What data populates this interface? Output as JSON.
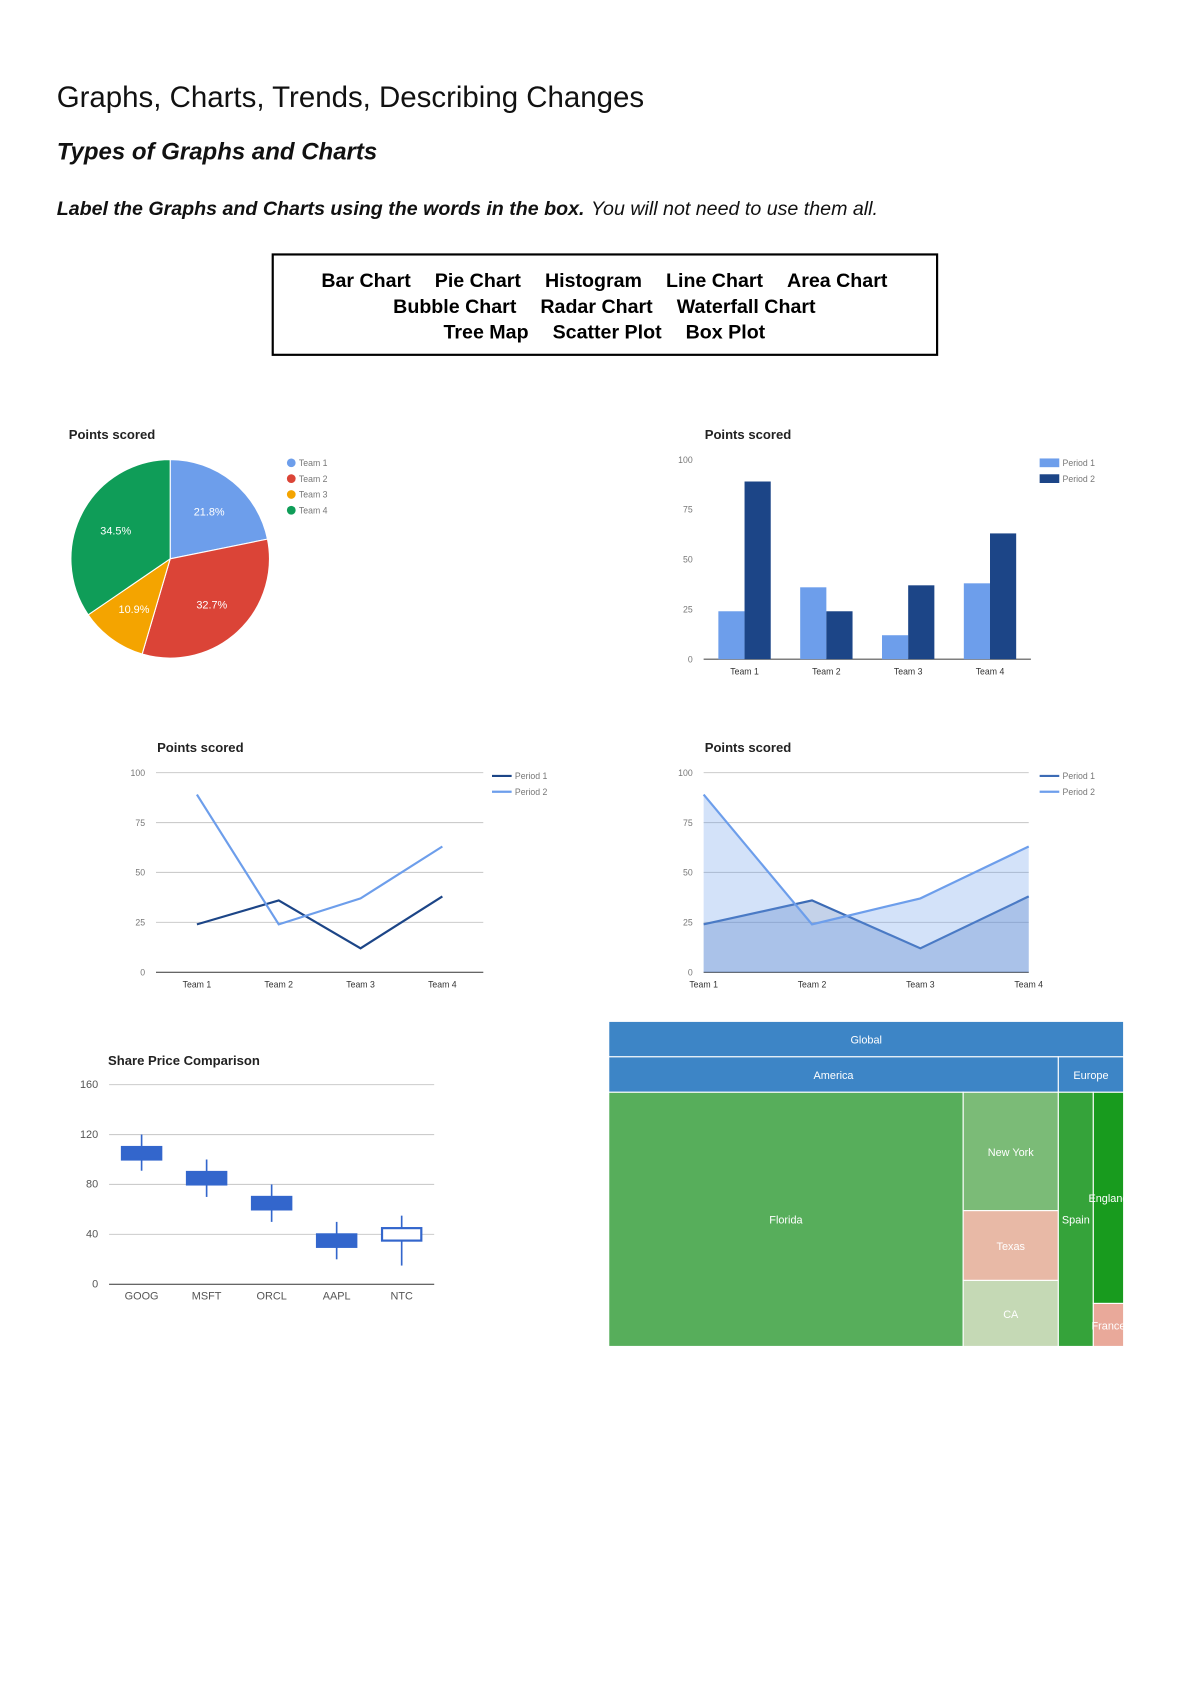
{
  "header": {
    "title": "Graphs, Charts, Trends, Describing Changes",
    "subtitle": "Types of Graphs and Charts",
    "instruction_bold": "Label the Graphs and Charts using the words in the box.",
    "instruction": "You will not need to use them all."
  },
  "word_box": [
    [
      "Bar Chart",
      "Pie Chart",
      "Histogram",
      "Line Chart",
      "Area Chart"
    ],
    [
      "Bubble Chart",
      "Radar Chart",
      "Waterfall Chart"
    ],
    [
      "Tree Map",
      "Scatter Plot",
      "Box Plot"
    ]
  ],
  "chart_data": [
    {
      "type": "pie",
      "title": "Points scored",
      "categories": [
        "Team 1",
        "Team 2",
        "Team 3",
        "Team 4"
      ],
      "values": [
        21.8,
        32.7,
        10.9,
        34.5
      ],
      "value_labels": [
        "21.8%",
        "32.7%",
        "10.9%",
        "34.5%"
      ],
      "colors": [
        "#6d9eeb",
        "#db4437",
        "#f4a400",
        "#0f9d58"
      ],
      "legend": "right"
    },
    {
      "type": "bar",
      "title": "Points scored",
      "categories": [
        "Team 1",
        "Team 2",
        "Team 3",
        "Team 4"
      ],
      "series": [
        {
          "name": "Period 1",
          "color": "#6d9eeb",
          "values": [
            24,
            36,
            12,
            38
          ]
        },
        {
          "name": "Period 2",
          "color": "#1c4587",
          "values": [
            89,
            24,
            37,
            63
          ]
        }
      ],
      "ylim": [
        0,
        100
      ],
      "yticks": [
        0,
        25,
        50,
        75,
        100
      ],
      "grid": false,
      "legend": "right"
    },
    {
      "type": "line",
      "title": "Points scored",
      "categories": [
        "Team 1",
        "Team 2",
        "Team 3",
        "Team 4"
      ],
      "series": [
        {
          "name": "Period 1",
          "color": "#1c4587",
          "values": [
            24,
            36,
            12,
            38
          ]
        },
        {
          "name": "Period 2",
          "color": "#6d9eeb",
          "values": [
            89,
            24,
            37,
            63
          ]
        }
      ],
      "ylim": [
        0,
        100
      ],
      "yticks": [
        0,
        25,
        50,
        75,
        100
      ],
      "grid": true,
      "legend": "right"
    },
    {
      "type": "area",
      "title": "Points scored",
      "categories": [
        "Team 1",
        "Team 2",
        "Team 3",
        "Team 4"
      ],
      "series": [
        {
          "name": "Period 1",
          "color": "#3c6bb5",
          "values": [
            24,
            36,
            12,
            38
          ]
        },
        {
          "name": "Period 2",
          "color": "#6d9eeb",
          "values": [
            89,
            24,
            37,
            63
          ]
        }
      ],
      "ylim": [
        0,
        100
      ],
      "yticks": [
        0,
        25,
        50,
        75,
        100
      ],
      "grid": true,
      "legend": "right"
    },
    {
      "type": "candlestick",
      "title": "Share Price Comparison",
      "categories": [
        "GOOG",
        "MSFT",
        "ORCL",
        "AAPL",
        "NTC"
      ],
      "low": [
        91,
        70,
        50,
        20,
        15
      ],
      "open": [
        110,
        90,
        70,
        40,
        35
      ],
      "close": [
        100,
        80,
        60,
        30,
        45
      ],
      "high": [
        120,
        100,
        80,
        50,
        55
      ],
      "color": "#3366cc",
      "ylim": [
        0,
        160
      ],
      "yticks": [
        0,
        40,
        80,
        120,
        160
      ],
      "grid": true
    },
    {
      "type": "treemap",
      "title": "Global",
      "header_color": "#3d85c6",
      "groups": [
        {
          "name": "America",
          "children": [
            {
              "name": "Florida",
              "value": 76,
              "color": "#57ae5b"
            },
            {
              "name": "New York",
              "value": 9.5,
              "color": "#7bbb77"
            },
            {
              "name": "Texas",
              "value": 5.6,
              "color": "#e8b9a6"
            },
            {
              "name": "CA",
              "value": 5.3,
              "color": "#c5d9b5"
            }
          ]
        },
        {
          "name": "Europe",
          "children": [
            {
              "name": "Spain",
              "value": 7.5,
              "color": "#35a33a"
            },
            {
              "name": "England",
              "value": 5.4,
              "color": "#189b1e"
            },
            {
              "name": "France",
              "value": 1.1,
              "color": "#e9a99a"
            }
          ]
        }
      ]
    }
  ]
}
